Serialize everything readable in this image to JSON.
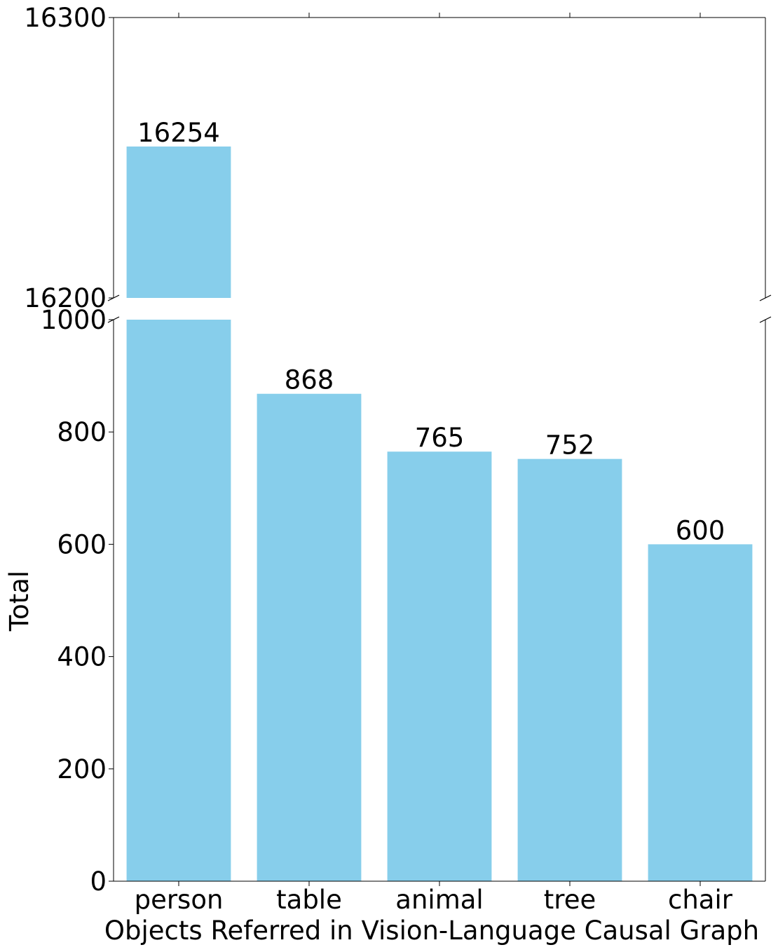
{
  "chart_data": {
    "type": "bar",
    "broken_axis": true,
    "categories": [
      "person",
      "table",
      "animal",
      "tree",
      "chair"
    ],
    "values": [
      16254,
      868,
      765,
      752,
      600
    ],
    "data_labels": [
      "16254",
      "868",
      "765",
      "752",
      "600"
    ],
    "bar_color": "#87CEEB",
    "xlabel": "Objects Referred in Vision-Language Causal Graph",
    "ylabel": "Total",
    "upper_segment": {
      "ylim": [
        16200,
        16300
      ],
      "ticks": [
        16200,
        16300
      ],
      "tick_labels": [
        "16200",
        "16300"
      ]
    },
    "lower_segment": {
      "ylim": [
        0,
        1000
      ],
      "ticks": [
        0,
        200,
        400,
        600,
        800,
        1000
      ],
      "tick_labels": [
        "0",
        "200",
        "400",
        "600",
        "800",
        "1000"
      ]
    },
    "grid": false,
    "legend": "none"
  }
}
